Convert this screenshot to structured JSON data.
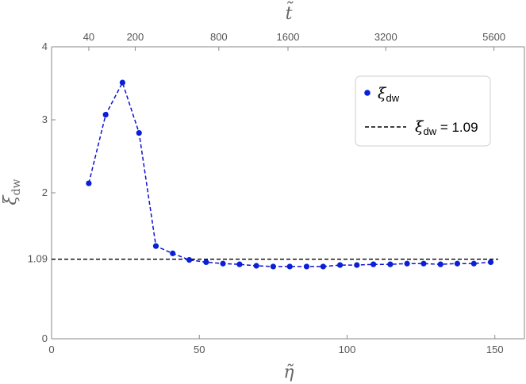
{
  "chart_data": {
    "type": "line",
    "xlabel": "η̃",
    "ylabel": "ξdw",
    "top_xlabel": "t̃",
    "xlim": [
      0,
      160
    ],
    "ylim": [
      0,
      4
    ],
    "x_ticks": [
      "0",
      "50",
      "100",
      "150"
    ],
    "x_tick_values": [
      0,
      50,
      100,
      150
    ],
    "y_ticks": [
      "0",
      "1.09",
      "2",
      "3",
      "4"
    ],
    "y_tick_values": [
      0,
      1.09,
      2,
      3,
      4
    ],
    "top_ticks": [
      {
        "label": "40",
        "eta": 12.6
      },
      {
        "label": "200",
        "eta": 28.3
      },
      {
        "label": "800",
        "eta": 56.6
      },
      {
        "label": "1600",
        "eta": 80.0
      },
      {
        "label": "3200",
        "eta": 113.1
      },
      {
        "label": "5600",
        "eta": 149.7
      }
    ],
    "series": [
      {
        "name": "ξdw",
        "style": "dashed-with-markers",
        "color": "#1010d0",
        "x": [
          12.6,
          18.3,
          24.0,
          29.6,
          35.3,
          41.0,
          46.6,
          52.3,
          58.0,
          63.6,
          69.3,
          75.0,
          80.6,
          86.3,
          91.9,
          97.6,
          103.3,
          108.9,
          114.6,
          120.3,
          125.9,
          131.6,
          137.3,
          142.9,
          148.6
        ],
        "y": [
          2.13,
          3.07,
          3.51,
          2.82,
          1.27,
          1.17,
          1.08,
          1.05,
          1.03,
          1.02,
          1.0,
          0.99,
          0.99,
          0.99,
          0.99,
          1.01,
          1.01,
          1.02,
          1.02,
          1.03,
          1.03,
          1.02,
          1.03,
          1.03,
          1.05
        ]
      }
    ],
    "reference_line": {
      "label": "ξdw = 1.09",
      "y": 1.09,
      "color": "#000000",
      "style": "dashed"
    },
    "legend": {
      "position": "top-right",
      "entries": [
        {
          "symbol": "ξ",
          "subscript": "dw",
          "suffix": ""
        },
        {
          "symbol": "ξ",
          "subscript": "dw",
          "suffix": " = 1.09"
        }
      ]
    },
    "grid": false
  }
}
